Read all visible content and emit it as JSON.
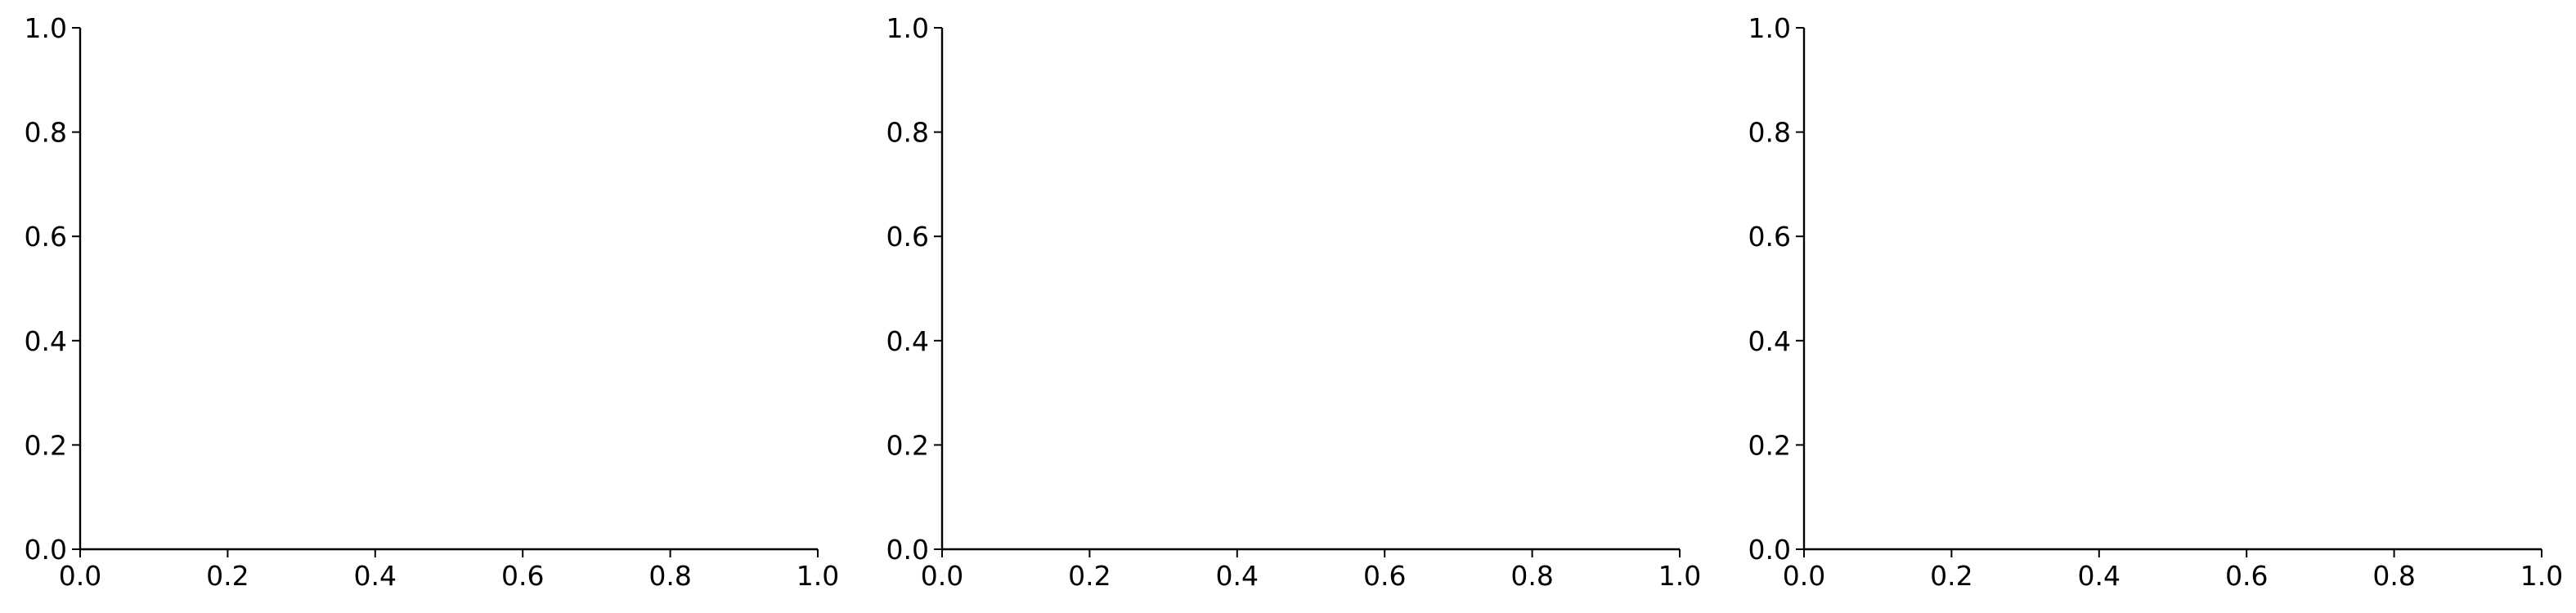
{
  "chart_data": [
    {
      "type": "scatter",
      "title": "",
      "xlabel": "",
      "ylabel": "",
      "xlim": [
        0,
        1
      ],
      "ylim": [
        0,
        1
      ],
      "x_ticks": [
        "0.0",
        "0.2",
        "0.4",
        "0.6",
        "0.8",
        "1.0"
      ],
      "y_ticks": [
        "0.0",
        "0.2",
        "0.4",
        "0.6",
        "0.8",
        "1.0"
      ],
      "series": [],
      "grid": false,
      "spines": [
        "left",
        "bottom"
      ]
    },
    {
      "type": "scatter",
      "title": "",
      "xlabel": "",
      "ylabel": "",
      "xlim": [
        0,
        1
      ],
      "ylim": [
        0,
        1
      ],
      "x_ticks": [
        "0.0",
        "0.2",
        "0.4",
        "0.6",
        "0.8",
        "1.0"
      ],
      "y_ticks": [
        "0.0",
        "0.2",
        "0.4",
        "0.6",
        "0.8",
        "1.0"
      ],
      "series": [],
      "grid": false,
      "spines": [
        "left",
        "bottom"
      ]
    },
    {
      "type": "scatter",
      "title": "",
      "xlabel": "",
      "ylabel": "",
      "xlim": [
        0,
        1
      ],
      "ylim": [
        0,
        1
      ],
      "x_ticks": [
        "0.0",
        "0.2",
        "0.4",
        "0.6",
        "0.8",
        "1.0"
      ],
      "y_ticks": [
        "0.0",
        "0.2",
        "0.4",
        "0.6",
        "0.8",
        "1.0"
      ],
      "series": [],
      "grid": false,
      "spines": [
        "left",
        "bottom"
      ]
    }
  ]
}
